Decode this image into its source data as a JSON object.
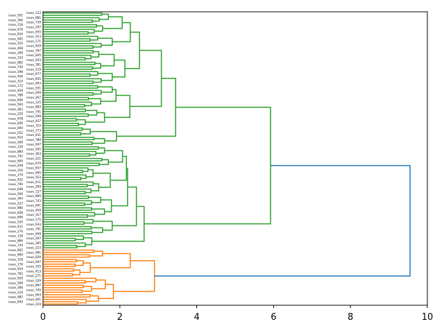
{
  "chart_data": {
    "type": "dendrogram",
    "orientation": "right",
    "title": "",
    "xlabel": "",
    "ylabel": "",
    "xlim": [
      0,
      10
    ],
    "xticks": [
      0,
      2,
      4,
      6,
      8,
      10
    ],
    "xtick_labels": [
      "0",
      "2",
      "4",
      "6",
      "8",
      "10"
    ],
    "colors": {
      "above_threshold": "#1f77b4",
      "cluster_1": "#2ca02c",
      "cluster_2": "#ff7f0e"
    },
    "leaf_labels_legible": false,
    "leaf_label_prefix": "issue_",
    "tree": {
      "h": 9.55,
      "color": "#1f77b4",
      "c": [
        {
          "h": 5.92,
          "color": "#2ca02c",
          "c": [
            {
              "h": 3.45,
              "c": [
                {
                  "h": 3.08,
                  "c": [
                    {
                      "h": 2.51,
                      "c": [
                        {
                          "h": 2.27,
                          "c": [
                            {
                              "h": 2.06,
                              "c": [
                                {
                                  "n": 5,
                                  "h": 1.7
                                },
                                {
                                  "n": 5,
                                  "h": 1.55
                                }
                              ]
                            },
                            {
                              "n": 6,
                              "h": 1.8
                            }
                          ]
                        },
                        {
                          "h": 2.13,
                          "c": [
                            {
                              "h": 1.85,
                              "c": [
                                {
                                  "n": 5,
                                  "h": 1.45
                                },
                                {
                                  "n": 4,
                                  "h": 1.5
                                }
                              ]
                            },
                            {
                              "n": 6,
                              "h": 1.8
                            }
                          ]
                        }
                      ]
                    },
                    {
                      "h": 2.26,
                      "c": [
                        {
                          "h": 1.9,
                          "c": [
                            {
                              "n": 5,
                              "h": 1.8
                            },
                            {
                              "n": 5,
                              "h": 1.5
                            }
                          ]
                        },
                        {
                          "h": 1.6,
                          "c": [
                            {
                              "n": 4,
                              "h": 1.4
                            },
                            {
                              "n": 4,
                              "h": 1.1
                            }
                          ]
                        }
                      ]
                    }
                  ]
                },
                {
                  "h": 1.91,
                  "c": [
                    {
                      "n": 4,
                      "h": 1.23
                    },
                    {
                      "n": 4,
                      "h": 1.6
                    }
                  ]
                }
              ]
            },
            {
              "h": 2.63,
              "c": [
                {
                  "h": 2.43,
                  "c": [
                    {
                      "h": 2.2,
                      "c": [
                        {
                          "h": 2.17,
                          "c": [
                            {
                              "h": 2.07,
                              "c": [
                                {
                                  "n": 5,
                                  "h": 1.6
                                },
                                {
                                  "n": 4,
                                  "h": 1.7
                                }
                              ]
                            },
                            {
                              "h": 1.75,
                              "c": [
                                {
                                  "n": 6,
                                  "h": 1.3
                                },
                                {
                                  "n": 6,
                                  "h": 1.45
                                }
                              ]
                            }
                          ]
                        },
                        {
                          "h": 1.78,
                          "c": [
                            {
                              "n": 5,
                              "h": 1.5
                            },
                            {
                              "n": 5,
                              "h": 1.6
                            }
                          ]
                        }
                      ]
                    },
                    {
                      "h": 1.8,
                      "c": [
                        {
                          "n": 3,
                          "h": 1.3
                        },
                        {
                          "n": 4,
                          "h": 1.55
                        }
                      ]
                    }
                  ]
                },
                {
                  "h": 1.27,
                  "c": [
                    {
                      "n": 3,
                      "h": 1.05
                    },
                    {
                      "n": 3,
                      "h": 1.1
                    }
                  ]
                }
              ]
            }
          ]
        },
        {
          "h": 2.9,
          "color": "#ff7f0e",
          "c": [
            {
              "h": 2.27,
              "c": [
                {
                  "n": 4,
                  "h": 1.55
                },
                {
                  "n": 8,
                  "h": 1.23
                }
              ]
            },
            {
              "h": 1.83,
              "c": [
                {
                  "n": 7,
                  "h": 1.62
                },
                {
                  "n": 5,
                  "h": 1.44
                }
              ]
            }
          ]
        }
      ]
    }
  }
}
